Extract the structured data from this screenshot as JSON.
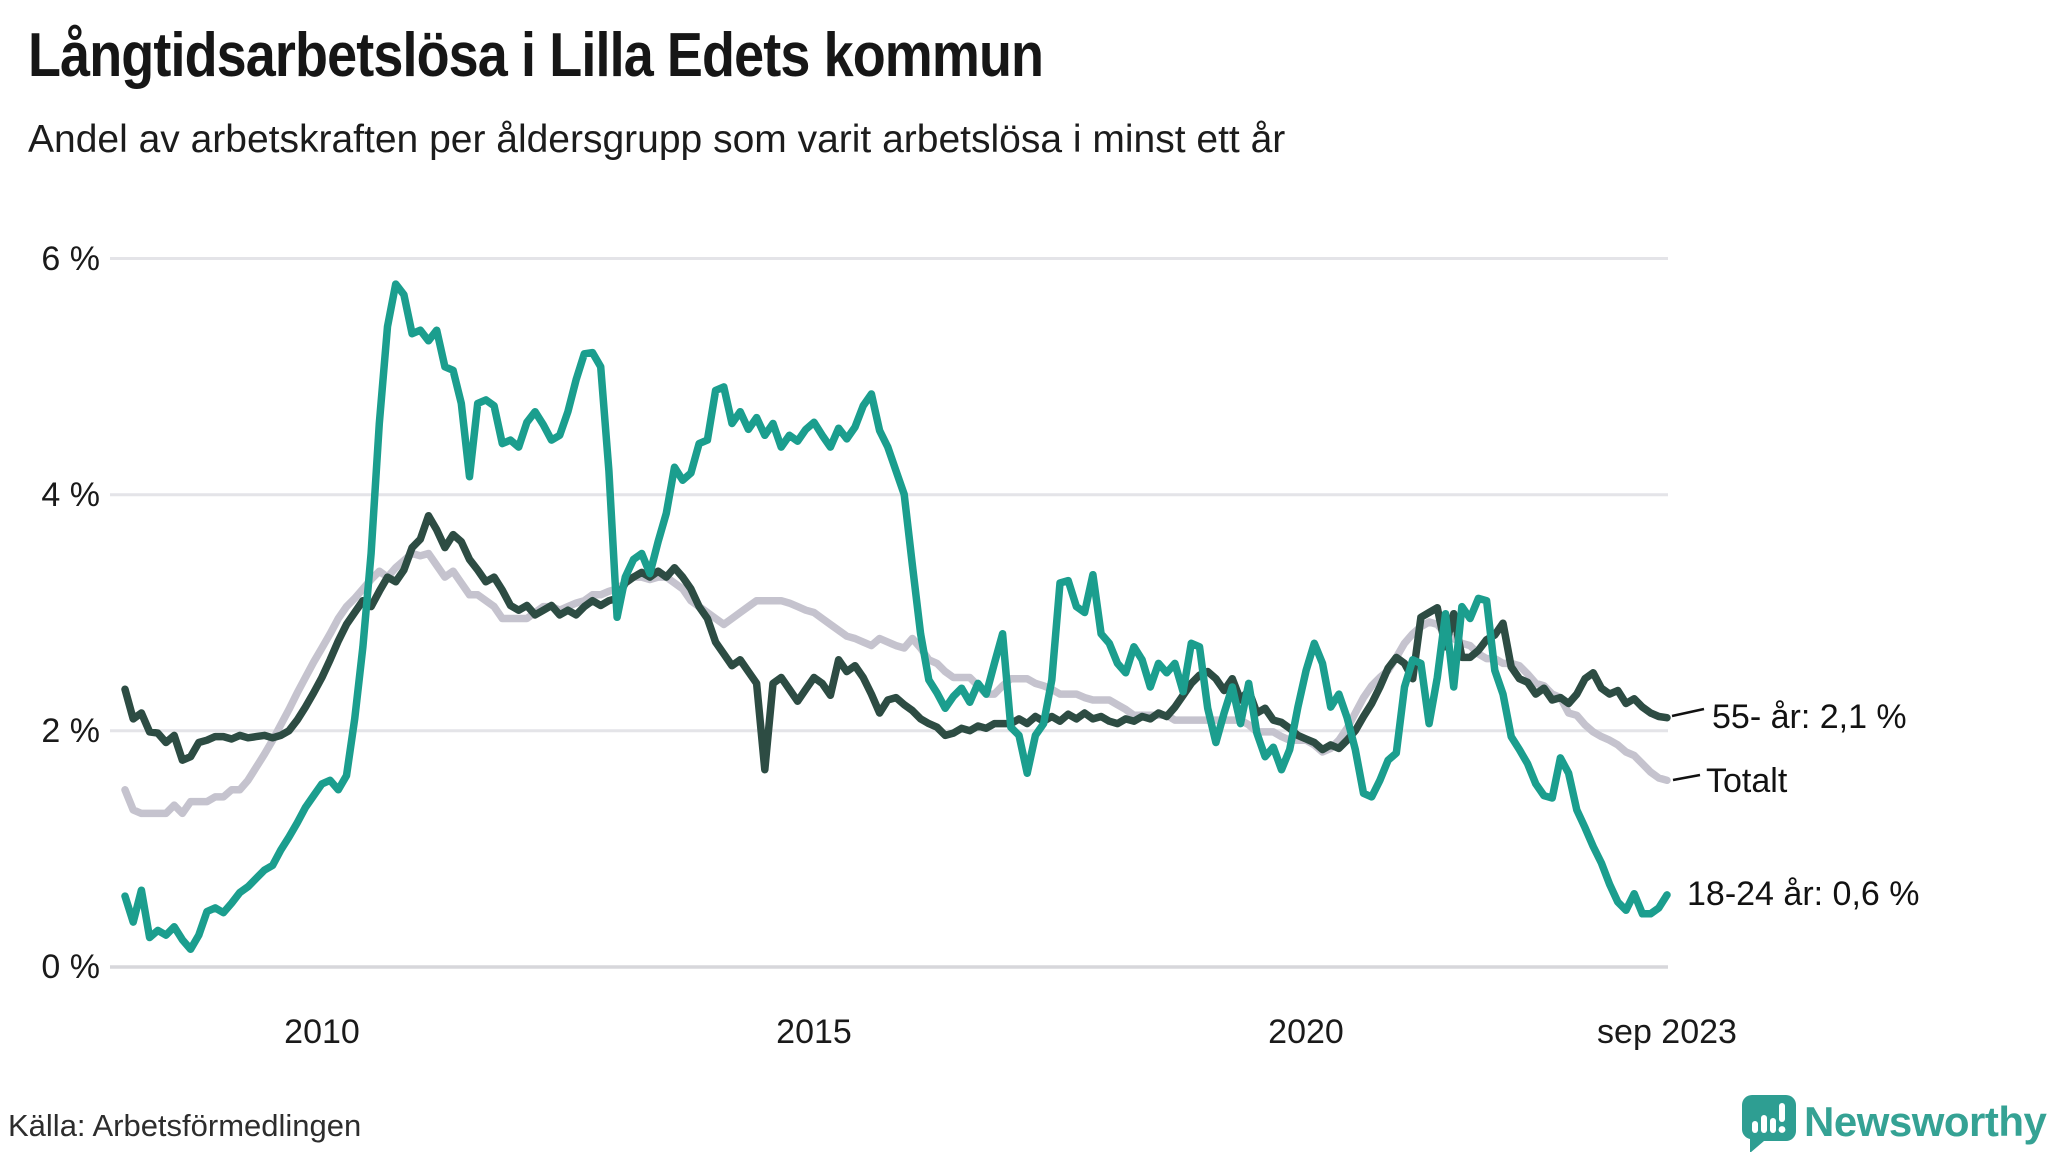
{
  "title": "Långtidsarbetslösa i Lilla Edets kommun",
  "subtitle": "Andel av arbetskraften per åldersgrupp som varit arbetslösa i minst ett år",
  "source": "Källa: Arbetsförmedlingen",
  "logo": {
    "text": "Newsworthy",
    "icon": "newsworthy-speech-bubble-bar-chart-icon"
  },
  "colors": {
    "youth_line": "#1b9e8e",
    "older_line": "#2d4c43",
    "total_line": "#c5c3ce",
    "gridline": "#e4e4e8",
    "baseline": "#d7d7db",
    "text": "#1a1a1a",
    "logo_teal": "#2e9e92"
  },
  "y_axis": {
    "ticks": [
      "6 %",
      "4 %",
      "2 %",
      "0 %"
    ]
  },
  "x_axis": {
    "ticks": [
      "2010",
      "2015",
      "2020",
      "sep 2023"
    ]
  },
  "end_labels": {
    "older": "55- år: 2,1 %",
    "total": "Totalt",
    "youth": "18-24 år: 0,6 %"
  },
  "chart_data": {
    "type": "line",
    "title": "Långtidsarbetslösa i Lilla Edets kommun",
    "subtitle": "Andel av arbetskraften per åldersgrupp som varit arbetslösa i minst ett år",
    "unit": "%",
    "frequency": "monthly",
    "x_start": "2008-01",
    "x_end": "2023-09",
    "ylim": [
      0,
      6
    ],
    "y_ticks": [
      0,
      2,
      4,
      6
    ],
    "x_tick_positions": [
      "2010-01",
      "2015-01",
      "2020-01",
      "2023-09"
    ],
    "grid": "horizontal",
    "legend_position": "right-end-labels",
    "series": [
      {
        "id": "total",
        "name": "Totalt",
        "color": "#c5c3ce",
        "end_value": 1.58,
        "values": [
          1.5,
          1.33,
          1.3,
          1.3,
          1.3,
          1.3,
          1.37,
          1.3,
          1.4,
          1.4,
          1.4,
          1.44,
          1.44,
          1.5,
          1.5,
          1.58,
          1.69,
          1.8,
          1.92,
          2.05,
          2.18,
          2.32,
          2.45,
          2.58,
          2.7,
          2.82,
          2.95,
          3.05,
          3.12,
          3.2,
          3.28,
          3.35,
          3.3,
          3.38,
          3.44,
          3.5,
          3.48,
          3.5,
          3.4,
          3.3,
          3.35,
          3.25,
          3.15,
          3.15,
          3.1,
          3.05,
          2.95,
          2.95,
          2.95,
          2.95,
          3.0,
          3.05,
          3.05,
          3.02,
          3.05,
          3.08,
          3.1,
          3.15,
          3.15,
          3.18,
          3.2,
          3.25,
          3.3,
          3.3,
          3.28,
          3.3,
          3.3,
          3.25,
          3.2,
          3.1,
          3.05,
          3.0,
          2.95,
          2.9,
          2.95,
          3.0,
          3.05,
          3.1,
          3.1,
          3.1,
          3.1,
          3.08,
          3.05,
          3.02,
          3.0,
          2.95,
          2.9,
          2.85,
          2.8,
          2.78,
          2.75,
          2.72,
          2.78,
          2.75,
          2.72,
          2.7,
          2.78,
          2.7,
          2.6,
          2.57,
          2.5,
          2.45,
          2.45,
          2.45,
          2.38,
          2.31,
          2.31,
          2.38,
          2.44,
          2.44,
          2.44,
          2.4,
          2.38,
          2.35,
          2.31,
          2.31,
          2.31,
          2.28,
          2.26,
          2.26,
          2.26,
          2.22,
          2.18,
          2.13,
          2.13,
          2.13,
          2.13,
          2.13,
          2.09,
          2.09,
          2.09,
          2.09,
          2.09,
          2.09,
          2.09,
          2.09,
          2.09,
          2.05,
          1.99,
          1.99,
          1.99,
          1.95,
          1.92,
          1.92,
          1.92,
          1.88,
          1.82,
          1.85,
          1.92,
          2.02,
          2.15,
          2.28,
          2.38,
          2.45,
          2.51,
          2.62,
          2.74,
          2.82,
          2.88,
          2.92,
          2.9,
          2.82,
          2.78,
          2.74,
          2.72,
          2.65,
          2.61,
          2.61,
          2.57,
          2.57,
          2.55,
          2.48,
          2.4,
          2.38,
          2.31,
          2.28,
          2.15,
          2.13,
          2.05,
          1.99,
          1.95,
          1.92,
          1.88,
          1.82,
          1.79,
          1.72,
          1.65,
          1.6,
          1.58
        ]
      },
      {
        "id": "older",
        "name": "55- år",
        "color": "#2d4c43",
        "end_value": 2.11,
        "values": [
          2.35,
          2.1,
          2.15,
          1.99,
          1.98,
          1.9,
          1.96,
          1.75,
          1.78,
          1.9,
          1.92,
          1.95,
          1.95,
          1.93,
          1.96,
          1.94,
          1.95,
          1.96,
          1.94,
          1.96,
          2.0,
          2.09,
          2.2,
          2.32,
          2.45,
          2.6,
          2.76,
          2.9,
          3.0,
          3.1,
          3.05,
          3.18,
          3.3,
          3.26,
          3.36,
          3.55,
          3.62,
          3.82,
          3.7,
          3.55,
          3.66,
          3.6,
          3.45,
          3.36,
          3.26,
          3.3,
          3.19,
          3.06,
          3.02,
          3.06,
          2.98,
          3.02,
          3.06,
          2.98,
          3.02,
          2.98,
          3.05,
          3.1,
          3.06,
          3.1,
          3.12,
          3.25,
          3.3,
          3.34,
          3.3,
          3.35,
          3.3,
          3.38,
          3.3,
          3.2,
          3.05,
          2.95,
          2.75,
          2.65,
          2.55,
          2.6,
          2.5,
          2.4,
          1.67,
          2.4,
          2.45,
          2.35,
          2.25,
          2.35,
          2.45,
          2.4,
          2.3,
          2.6,
          2.5,
          2.55,
          2.45,
          2.31,
          2.15,
          2.26,
          2.28,
          2.22,
          2.17,
          2.1,
          2.06,
          2.03,
          1.96,
          1.98,
          2.02,
          2.0,
          2.04,
          2.02,
          2.06,
          2.06,
          2.06,
          2.1,
          2.06,
          2.12,
          2.08,
          2.12,
          2.08,
          2.14,
          2.1,
          2.15,
          2.1,
          2.12,
          2.08,
          2.06,
          2.1,
          2.08,
          2.12,
          2.1,
          2.15,
          2.12,
          2.2,
          2.3,
          2.4,
          2.47,
          2.5,
          2.44,
          2.34,
          2.44,
          2.26,
          2.34,
          2.15,
          2.19,
          2.09,
          2.07,
          2.02,
          1.96,
          1.93,
          1.9,
          1.84,
          1.88,
          1.85,
          1.92,
          2.0,
          2.12,
          2.23,
          2.37,
          2.53,
          2.62,
          2.57,
          2.44,
          2.96,
          3.0,
          3.04,
          2.71,
          2.99,
          2.62,
          2.62,
          2.68,
          2.77,
          2.81,
          2.91,
          2.54,
          2.44,
          2.41,
          2.31,
          2.36,
          2.26,
          2.28,
          2.23,
          2.31,
          2.44,
          2.49,
          2.36,
          2.31,
          2.34,
          2.23,
          2.27,
          2.2,
          2.15,
          2.12,
          2.11
        ]
      },
      {
        "id": "youth",
        "name": "18-24 år",
        "color": "#1b9e8e",
        "end_value": 0.61,
        "values": [
          0.6,
          0.38,
          0.65,
          0.25,
          0.31,
          0.27,
          0.34,
          0.23,
          0.15,
          0.27,
          0.47,
          0.5,
          0.46,
          0.54,
          0.63,
          0.68,
          0.75,
          0.82,
          0.86,
          0.99,
          1.1,
          1.22,
          1.35,
          1.45,
          1.55,
          1.58,
          1.5,
          1.62,
          2.1,
          2.71,
          3.5,
          4.6,
          5.42,
          5.78,
          5.69,
          5.36,
          5.39,
          5.3,
          5.39,
          5.08,
          5.05,
          4.77,
          4.15,
          4.77,
          4.8,
          4.75,
          4.43,
          4.46,
          4.4,
          4.61,
          4.7,
          4.59,
          4.46,
          4.5,
          4.7,
          4.97,
          5.19,
          5.2,
          5.08,
          4.2,
          2.96,
          3.3,
          3.45,
          3.5,
          3.33,
          3.6,
          3.84,
          4.23,
          4.12,
          4.18,
          4.43,
          4.46,
          4.88,
          4.91,
          4.6,
          4.7,
          4.55,
          4.65,
          4.5,
          4.6,
          4.4,
          4.5,
          4.45,
          4.55,
          4.61,
          4.5,
          4.4,
          4.56,
          4.47,
          4.57,
          4.75,
          4.85,
          4.54,
          4.4,
          4.2,
          4.0,
          3.4,
          2.82,
          2.43,
          2.32,
          2.19,
          2.29,
          2.36,
          2.24,
          2.4,
          2.31,
          2.57,
          2.82,
          2.03,
          1.96,
          1.64,
          1.96,
          2.06,
          2.43,
          3.25,
          3.27,
          3.05,
          3.0,
          3.32,
          2.82,
          2.74,
          2.57,
          2.49,
          2.71,
          2.6,
          2.37,
          2.57,
          2.49,
          2.57,
          2.33,
          2.74,
          2.71,
          2.19,
          1.9,
          2.15,
          2.37,
          2.06,
          2.4,
          1.98,
          1.78,
          1.86,
          1.67,
          1.84,
          2.2,
          2.51,
          2.74,
          2.57,
          2.2,
          2.31,
          2.11,
          1.84,
          1.47,
          1.44,
          1.58,
          1.75,
          1.81,
          2.37,
          2.6,
          2.57,
          2.06,
          2.45,
          2.99,
          2.37,
          3.05,
          2.95,
          3.12,
          3.1,
          2.51,
          2.31,
          1.95,
          1.84,
          1.72,
          1.55,
          1.45,
          1.43,
          1.77,
          1.64,
          1.33,
          1.18,
          1.02,
          0.88,
          0.7,
          0.55,
          0.48,
          0.62,
          0.45,
          0.45,
          0.5,
          0.61
        ]
      }
    ]
  }
}
